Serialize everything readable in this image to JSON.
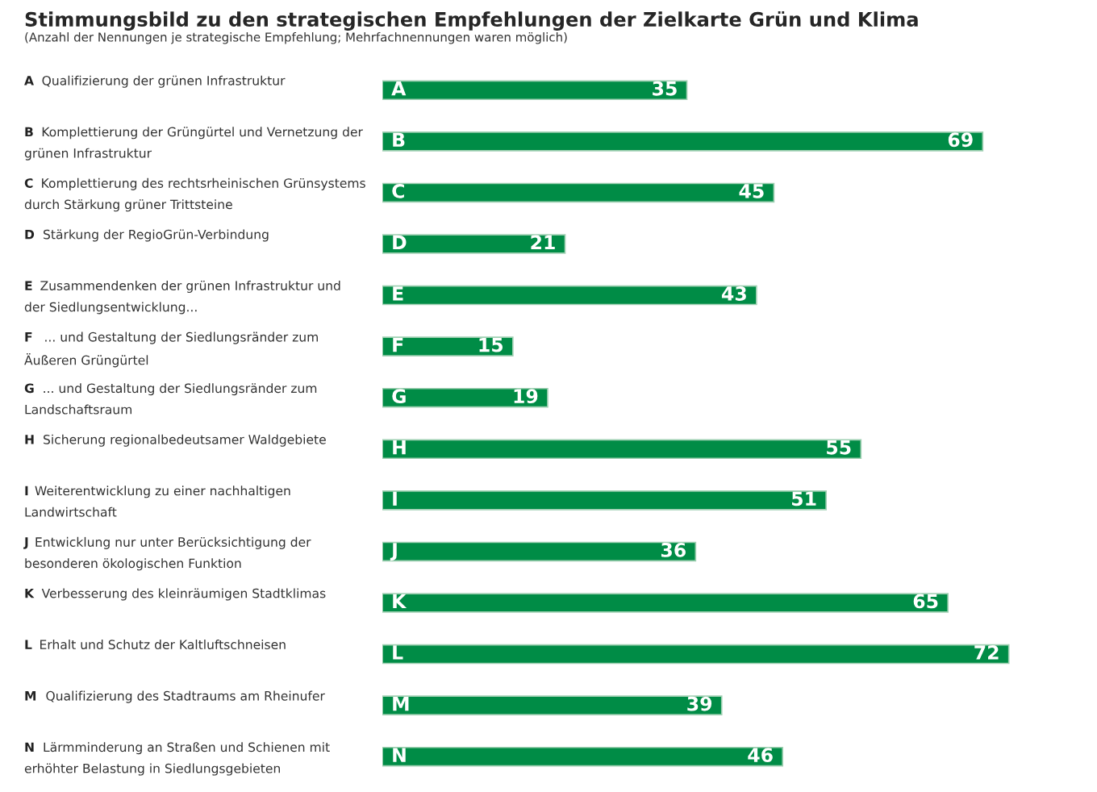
{
  "chart_data": {
    "type": "bar",
    "orientation": "horizontal",
    "title": "Stimmungsbild zu den strategischen Empfehlungen der Zielkarte Grün und Klima",
    "subtitle": "(Anzahl der Nennungen je strategische Empfehlung; Mehrfachnennungen waren möglich)",
    "categories": [
      "A Qualifizierung der grünen Infrastruktur",
      "B Komplettierung der Grüngürtel und Vernetzung der\ngrünen Infrastruktur",
      "C Komplettierung des rechtsrheinischen Grünsystems\ndurch Stärkung grüner Trittsteine",
      "D Stärkung der RegioGrün-Verbindung",
      "E Zusammendenken der grünen Infrastruktur und\nder Siedlungsentwicklung...",
      "F  ... und Gestaltung der Siedlungsränder zum\nÄußeren Grüngürtel",
      "G ... und Gestaltung der Siedlungsränder zum\nLandschaftsraum",
      "H Sicherung regionalbedeutsamer Waldgebiete",
      "I Weiterentwicklung zu einer nachhaltigen\nLandwirtschaft",
      "J Entwicklung nur unter Berücksichtigung der\nbesonderen ökologischen Funktion",
      "K Verbesserung des kleinräumigen Stadtklimas",
      "L Erhalt und Schutz der Kaltluftschneisen",
      "M Qualifizierung des Stadtraums am Rheinufer",
      "N Lärmminderung an Straßen und Schienen mit\nerhöhter Belastung in Siedlungsgebieten"
    ],
    "values": [
      35,
      69,
      45,
      21,
      43,
      15,
      19,
      55,
      51,
      36,
      65,
      72,
      39,
      46
    ],
    "color": "#008c46",
    "data_labels": true,
    "annotations": [
      {
        "text": "A",
        "y": "A Qualifizierung der grünen Infrastruktur"
      },
      {
        "text": "B",
        "y": "B Komplettierung der Grüngürtel und Vernetzung der\ngrünen Infrastruktur"
      },
      {
        "text": "C",
        "y": "C Komplettierung des rechtsrheinischen Grünsystems\ndurch Stärkung grüner Trittsteine"
      },
      {
        "text": "D",
        "y": "D Stärkung der RegioGrün-Verbindung"
      },
      {
        "text": "E",
        "y": "E Zusammendenken der grünen Infrastruktur und\nder Siedlungsentwicklung..."
      },
      {
        "text": "F",
        "y": "F  ... und Gestaltung der Siedlungsränder zum\nÄußeren Grüngürtel"
      },
      {
        "text": "G",
        "y": "G ... und Gestaltung der Siedlungsränder zum\nLandschaftsraum"
      },
      {
        "text": "H",
        "y": "H Sicherung regionalbedeutsamer Waldgebiete"
      },
      {
        "text": "I",
        "y": "I Weiterentwicklung zu einer nachhaltigen\nLandwirtschaft"
      },
      {
        "text": "J",
        "y": "J Entwicklung nur unter Berücksichtigung der\nbesonderen ökologischen Funktion"
      },
      {
        "text": "K",
        "y": "K Verbesserung des kleinräumigen Stadtklimas"
      },
      {
        "text": "L",
        "y": "L Erhalt und Schutz der Kaltluftschneisen"
      },
      {
        "text": "M",
        "y": "M Qualifizierung des Stadtraums am Rheinufer"
      },
      {
        "text": "N",
        "y": "N Lärmminderung an Straßen und Schienen mit\nerhöhter Belastung in Siedlungsgebieten"
      }
    ]
  }
}
